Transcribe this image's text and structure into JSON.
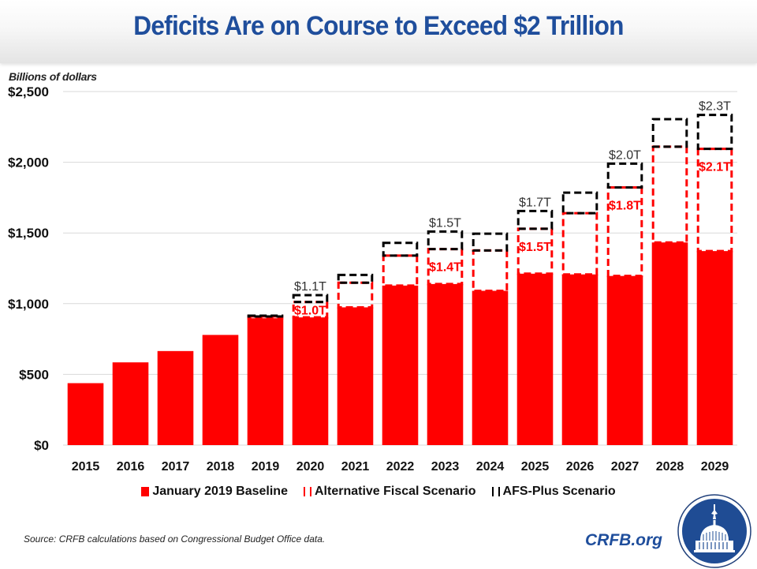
{
  "header": {
    "title": "Deficits Are on Course to Exceed $2 Trillion"
  },
  "chart_data": {
    "type": "bar",
    "title": "Deficits Are on Course to Exceed $2 Trillion",
    "xlabel": "",
    "ylabel": "Billions of dollars",
    "ylim": [
      0,
      2500
    ],
    "yticks": [
      0,
      500,
      1000,
      1500,
      2000,
      2500
    ],
    "ytick_labels": [
      "$0",
      "$500",
      "$1,000",
      "$1,500",
      "$2,000",
      "$2,500"
    ],
    "grid": true,
    "legend_position": "bottom",
    "categories": [
      "2015",
      "2016",
      "2017",
      "2018",
      "2019",
      "2020",
      "2021",
      "2022",
      "2023",
      "2024",
      "2025",
      "2026",
      "2027",
      "2028",
      "2029"
    ],
    "series": [
      {
        "name": "January 2019 Baseline",
        "style": "solid",
        "color": "#ff0000",
        "values": [
          438,
          585,
          665,
          779,
          897,
          903,
          974,
          1128,
          1139,
          1091,
          1212,
          1207,
          1196,
          1433,
          1372
        ]
      },
      {
        "name": "Alternative Fiscal Scenario",
        "style": "dashed",
        "color": "#ff0000",
        "values": [
          null,
          null,
          null,
          null,
          910,
          1012,
          1148,
          1340,
          1386,
          1376,
          1530,
          1640,
          1822,
          2110,
          2095
        ]
      },
      {
        "name": "AFS-Plus Scenario",
        "style": "dashed",
        "color": "#000000",
        "values": [
          null,
          null,
          null,
          null,
          915,
          1060,
          1203,
          1430,
          1510,
          1495,
          1655,
          1785,
          1990,
          2305,
          2335
        ]
      }
    ],
    "annotations": [
      {
        "category": "2020",
        "series": "Alternative Fiscal Scenario",
        "text": "$1.0T",
        "color": "#ff0000"
      },
      {
        "category": "2020",
        "series": "AFS-Plus Scenario",
        "text": "$1.1T",
        "color": "#333333"
      },
      {
        "category": "2023",
        "series": "Alternative Fiscal Scenario",
        "text": "$1.4T",
        "color": "#ff0000"
      },
      {
        "category": "2023",
        "series": "AFS-Plus Scenario",
        "text": "$1.5T",
        "color": "#333333"
      },
      {
        "category": "2025",
        "series": "Alternative Fiscal Scenario",
        "text": "$1.5T",
        "color": "#ff0000"
      },
      {
        "category": "2025",
        "series": "AFS-Plus Scenario",
        "text": "$1.7T",
        "color": "#333333"
      },
      {
        "category": "2027",
        "series": "Alternative Fiscal Scenario",
        "text": "$1.8T",
        "color": "#ff0000"
      },
      {
        "category": "2027",
        "series": "AFS-Plus Scenario",
        "text": "$2.0T",
        "color": "#333333"
      },
      {
        "category": "2029",
        "series": "Alternative Fiscal Scenario",
        "text": "$2.1T",
        "color": "#ff0000"
      },
      {
        "category": "2029",
        "series": "AFS-Plus Scenario",
        "text": "$2.3T",
        "color": "#333333"
      }
    ]
  },
  "legend": {
    "baseline": "January 2019 Baseline",
    "afs": "Alternative Fiscal Scenario",
    "afs_plus": "AFS-Plus Scenario"
  },
  "footer": {
    "source": "Source: CRFB calculations based on Congressional Budget Office data.",
    "brand": "CRFB.org",
    "logo_icon": "capitol-dome-icon"
  },
  "colors": {
    "title": "#1f4e9c",
    "baseline": "#ff0000",
    "afs": "#ff0000",
    "afs_plus": "#000000"
  }
}
